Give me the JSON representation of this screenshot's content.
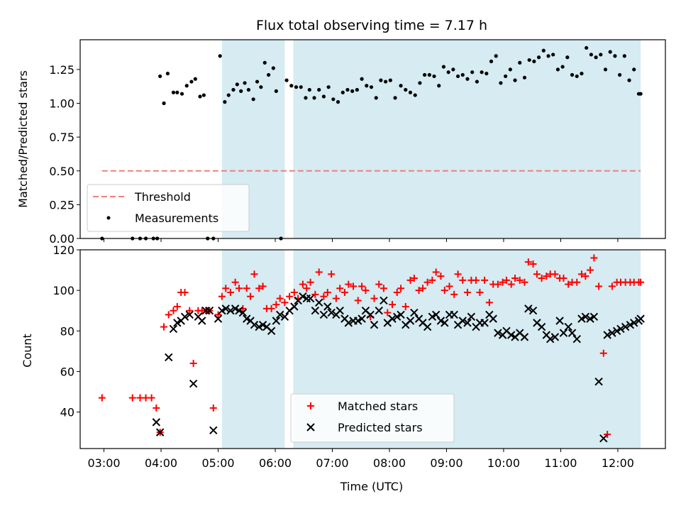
{
  "chart_data": [
    {
      "type": "scatter",
      "title": "Flux total observing time = 7.17 h",
      "xlabel": "",
      "ylabel": "Matched/Predicted stars",
      "ylim": [
        0,
        1.47
      ],
      "yticks": [
        "0.00",
        "0.25",
        "0.50",
        "0.75",
        "1.00",
        "1.25"
      ],
      "ytick_values": [
        0,
        0.25,
        0.5,
        0.75,
        1.0,
        1.25
      ],
      "grid": false,
      "legend_position": "lower-left",
      "threshold": {
        "name": "Threshold",
        "value": 0.5,
        "x_range": [
          "02:58",
          "12:24"
        ],
        "color": "#f07f7f"
      },
      "shaded_intervals": [
        [
          "05:04",
          "06:10"
        ],
        [
          "06:19",
          "12:24"
        ]
      ],
      "series": [
        {
          "name": "Measurements",
          "color": "#000000",
          "marker": "dot",
          "x": [
            "02:58",
            "03:30",
            "03:38",
            "03:44",
            "03:52",
            "03:56",
            "03:59",
            "04:03",
            "04:07",
            "04:13",
            "04:17",
            "04:22",
            "04:27",
            "04:32",
            "04:36",
            "04:41",
            "04:45",
            "04:49",
            "04:55",
            "05:02",
            "05:07",
            "05:11",
            "05:16",
            "05:20",
            "05:24",
            "05:28",
            "05:32",
            "05:37",
            "05:41",
            "05:45",
            "05:49",
            "05:53",
            "05:58",
            "06:01",
            "06:06",
            "06:12",
            "06:17",
            "06:22",
            "06:27",
            "06:32",
            "06:36",
            "06:41",
            "06:46",
            "06:51",
            "06:56",
            "07:01",
            "07:06",
            "07:11",
            "07:16",
            "07:21",
            "07:26",
            "07:31",
            "07:36",
            "07:41",
            "07:46",
            "07:51",
            "07:56",
            "08:01",
            "08:06",
            "08:12",
            "08:17",
            "08:22",
            "08:27",
            "08:32",
            "08:37",
            "08:42",
            "08:47",
            "08:52",
            "08:57",
            "09:02",
            "09:07",
            "09:12",
            "09:17",
            "09:22",
            "09:27",
            "09:32",
            "09:37",
            "09:42",
            "09:47",
            "09:52",
            "09:57",
            "10:02",
            "10:07",
            "10:12",
            "10:17",
            "10:22",
            "10:27",
            "10:32",
            "10:37",
            "10:42",
            "10:47",
            "10:52",
            "10:57",
            "11:02",
            "11:07",
            "11:12",
            "11:17",
            "11:22",
            "11:27",
            "11:32",
            "11:37",
            "11:42",
            "11:47",
            "11:52",
            "11:57",
            "12:02",
            "12:07",
            "12:12",
            "12:17",
            "12:22",
            "12:24"
          ],
          "y": [
            0.0,
            0.0,
            0.0,
            0.0,
            0.0,
            0.0,
            1.2,
            1.0,
            1.22,
            1.08,
            1.08,
            1.07,
            1.13,
            1.16,
            1.18,
            1.05,
            1.06,
            0.0,
            0.0,
            1.35,
            1.01,
            1.06,
            1.1,
            1.14,
            1.09,
            1.15,
            1.1,
            1.03,
            1.16,
            1.12,
            1.3,
            1.21,
            1.26,
            1.09,
            0.0,
            1.17,
            1.13,
            1.12,
            1.12,
            1.04,
            1.1,
            1.04,
            1.1,
            1.05,
            1.12,
            1.03,
            1.01,
            1.08,
            1.1,
            1.09,
            1.1,
            1.18,
            1.13,
            1.12,
            1.04,
            1.17,
            1.16,
            1.17,
            1.04,
            1.13,
            1.1,
            1.08,
            1.06,
            1.15,
            1.21,
            1.21,
            1.2,
            1.13,
            1.27,
            1.23,
            1.25,
            1.2,
            1.21,
            1.18,
            1.23,
            1.16,
            1.23,
            1.22,
            1.31,
            1.35,
            1.15,
            1.2,
            1.25,
            1.17,
            1.3,
            1.19,
            1.32,
            1.31,
            1.34,
            1.39,
            1.35,
            1.36,
            1.25,
            1.27,
            1.34,
            1.21,
            1.2,
            1.22,
            1.41,
            1.36,
            1.34,
            1.36,
            1.25,
            1.38,
            1.35,
            1.21,
            1.35,
            1.17,
            1.25,
            1.07,
            1.07
          ]
        }
      ]
    },
    {
      "type": "scatter",
      "title": "",
      "xlabel": "Time (UTC)",
      "ylabel": "Count",
      "ylim": [
        22,
        120
      ],
      "xlim": [
        "02:35",
        "12:50"
      ],
      "xticks": [
        "03:00",
        "04:00",
        "05:00",
        "06:00",
        "07:00",
        "08:00",
        "09:00",
        "10:00",
        "11:00",
        "12:00"
      ],
      "yticks": [
        "40",
        "60",
        "80",
        "100",
        "120"
      ],
      "ytick_values": [
        40,
        60,
        80,
        100,
        120
      ],
      "grid": false,
      "legend_position": "lower-center",
      "shaded_intervals": [
        [
          "05:04",
          "06:10"
        ],
        [
          "06:19",
          "12:24"
        ]
      ],
      "series": [
        {
          "name": "Matched stars",
          "color": "#ff0000",
          "marker": "plus",
          "x": [
            "02:58",
            "03:30",
            "03:38",
            "03:44",
            "03:50",
            "03:55",
            "03:59",
            "04:03",
            "04:08",
            "04:13",
            "04:17",
            "04:21",
            "04:25",
            "04:30",
            "04:34",
            "04:39",
            "04:43",
            "04:47",
            "04:51",
            "04:55",
            "05:00",
            "05:04",
            "05:08",
            "05:13",
            "05:18",
            "05:22",
            "05:26",
            "05:30",
            "05:34",
            "05:38",
            "05:43",
            "05:47",
            "05:51",
            "05:56",
            "06:01",
            "06:05",
            "06:10",
            "06:15",
            "06:20",
            "06:24",
            "06:29",
            "06:33",
            "06:37",
            "06:42",
            "06:46",
            "06:51",
            "06:55",
            "06:59",
            "07:04",
            "07:08",
            "07:13",
            "07:17",
            "07:22",
            "07:27",
            "07:31",
            "07:35",
            "07:40",
            "07:44",
            "07:49",
            "07:54",
            "07:58",
            "08:03",
            "08:08",
            "08:12",
            "08:17",
            "08:22",
            "08:26",
            "08:31",
            "08:35",
            "08:40",
            "08:45",
            "08:49",
            "08:54",
            "08:58",
            "09:03",
            "09:08",
            "09:12",
            "09:17",
            "09:22",
            "09:26",
            "09:31",
            "09:35",
            "09:40",
            "09:45",
            "09:49",
            "09:54",
            "09:59",
            "10:03",
            "10:08",
            "10:12",
            "10:17",
            "10:22",
            "10:26",
            "10:31",
            "10:35",
            "10:40",
            "10:45",
            "10:49",
            "10:54",
            "10:59",
            "11:03",
            "11:08",
            "11:12",
            "11:17",
            "11:22",
            "11:26",
            "11:31",
            "11:35",
            "11:40",
            "11:45",
            "11:49",
            "11:54",
            "11:59",
            "12:03",
            "12:08",
            "12:13",
            "12:17",
            "12:22",
            "12:24"
          ],
          "y": [
            47,
            47,
            47,
            47,
            47,
            42,
            30,
            82,
            88,
            90,
            92,
            99,
            99,
            90,
            64,
            90,
            90,
            90,
            90,
            42,
            88,
            97,
            101,
            99,
            104,
            101,
            91,
            101,
            97,
            108,
            101,
            102,
            91,
            91,
            93,
            96,
            94,
            97,
            99,
            96,
            103,
            101,
            104,
            98,
            109,
            97,
            99,
            108,
            96,
            101,
            99,
            103,
            102,
            95,
            102,
            100,
            87,
            96,
            103,
            101,
            89,
            93,
            99,
            101,
            92,
            105,
            106,
            100,
            101,
            104,
            105,
            109,
            107,
            100,
            102,
            98,
            108,
            105,
            99,
            105,
            105,
            99,
            105,
            94,
            103,
            103,
            104,
            105,
            103,
            106,
            105,
            104,
            114,
            113,
            108,
            106,
            107,
            108,
            108,
            106,
            106,
            103,
            104,
            104,
            108,
            107,
            110,
            116,
            102,
            69,
            29,
            102,
            104,
            104,
            104,
            104,
            104,
            104,
            104
          ],
          "y_note": ""
        },
        {
          "name": "Predicted stars",
          "color": "#000000",
          "marker": "x",
          "x": [
            "03:55",
            "03:59",
            "04:08",
            "04:13",
            "04:17",
            "04:21",
            "04:25",
            "04:30",
            "04:34",
            "04:39",
            "04:43",
            "04:47",
            "04:51",
            "04:55",
            "05:00",
            "05:04",
            "05:08",
            "05:13",
            "05:18",
            "05:22",
            "05:26",
            "05:30",
            "05:34",
            "05:38",
            "05:43",
            "05:47",
            "05:51",
            "05:56",
            "06:01",
            "06:05",
            "06:10",
            "06:15",
            "06:20",
            "06:24",
            "06:29",
            "06:33",
            "06:37",
            "06:42",
            "06:46",
            "06:51",
            "06:55",
            "06:59",
            "07:04",
            "07:08",
            "07:13",
            "07:17",
            "07:22",
            "07:27",
            "07:31",
            "07:35",
            "07:40",
            "07:44",
            "07:49",
            "07:54",
            "07:58",
            "08:03",
            "08:08",
            "08:12",
            "08:17",
            "08:22",
            "08:26",
            "08:31",
            "08:35",
            "08:40",
            "08:45",
            "08:49",
            "08:54",
            "08:58",
            "09:03",
            "09:08",
            "09:12",
            "09:17",
            "09:22",
            "09:26",
            "09:31",
            "09:35",
            "09:40",
            "09:45",
            "09:49",
            "09:54",
            "09:59",
            "10:03",
            "10:08",
            "10:12",
            "10:17",
            "10:22",
            "10:26",
            "10:31",
            "10:35",
            "10:40",
            "10:45",
            "10:49",
            "10:54",
            "10:59",
            "11:03",
            "11:08",
            "11:12",
            "11:17",
            "11:22",
            "11:26",
            "11:31",
            "11:35",
            "11:40",
            "11:45",
            "11:49",
            "11:54",
            "11:59",
            "12:03",
            "12:08",
            "12:13",
            "12:17",
            "12:22",
            "12:24"
          ],
          "y": [
            35,
            30,
            67,
            81,
            84,
            85,
            87,
            88,
            54,
            87,
            85,
            90,
            90,
            31,
            86,
            90,
            91,
            90,
            91,
            90,
            89,
            86,
            85,
            83,
            82,
            83,
            82,
            80,
            85,
            88,
            87,
            90,
            92,
            95,
            97,
            96,
            96,
            90,
            94,
            88,
            92,
            89,
            88,
            90,
            86,
            84,
            85,
            85,
            86,
            90,
            88,
            83,
            90,
            95,
            84,
            86,
            87,
            88,
            83,
            85,
            89,
            86,
            84,
            82,
            87,
            88,
            85,
            84,
            88,
            88,
            83,
            85,
            84,
            87,
            82,
            84,
            84,
            88,
            86,
            79,
            78,
            80,
            78,
            77,
            79,
            77,
            91,
            90,
            84,
            82,
            78,
            76,
            77,
            85,
            79,
            82,
            79,
            76,
            86,
            87,
            86,
            87,
            55,
            27,
            78,
            79,
            80,
            81,
            82,
            83,
            84,
            85,
            86
          ],
          "y_note": ""
        }
      ]
    }
  ]
}
